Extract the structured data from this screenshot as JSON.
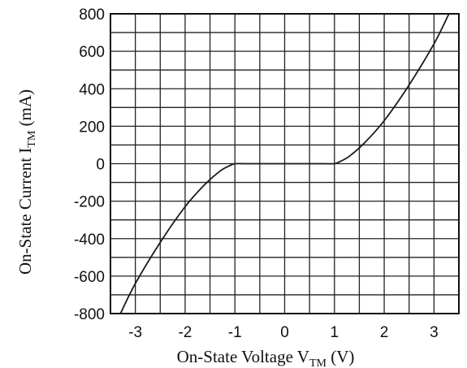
{
  "chart_data": {
    "type": "line",
    "title": "",
    "xlabel": {
      "prefix": "On-State Voltage  V",
      "subscript": "TM",
      "suffix": " (V)"
    },
    "ylabel": {
      "prefix": "On-State Current  I",
      "subscript": "TM",
      "suffix": " (mA)"
    },
    "xlim": [
      -3.5,
      3.5
    ],
    "ylim": [
      -800,
      800
    ],
    "grid": true,
    "x_ticks": [
      -3,
      -2,
      -1,
      0,
      1,
      2,
      3
    ],
    "y_ticks": [
      800,
      600,
      400,
      200,
      0,
      -200,
      -400,
      -600,
      -800
    ],
    "x_tick_labels": [
      "-3",
      "-2",
      "-1",
      "0",
      "1",
      "2",
      "3"
    ],
    "y_tick_labels": [
      "800",
      "600",
      "400",
      "200",
      "0",
      "-200",
      "-400",
      "-600",
      "-800"
    ],
    "series": [
      {
        "color": "#1a1a1a",
        "x": [
          -3.3,
          -3.0,
          -2.5,
          -2.0,
          -1.6,
          -1.3,
          -1.1,
          -1.0,
          -0.8,
          -0.5,
          0.0,
          0.5,
          0.8,
          1.0,
          1.1,
          1.3,
          1.6,
          2.0,
          2.5,
          3.0,
          3.3
        ],
        "y": [
          -800,
          -640,
          -420,
          -230,
          -110,
          -40,
          -10,
          0,
          0,
          0,
          0,
          0,
          0,
          0,
          10,
          40,
          110,
          230,
          420,
          640,
          800
        ]
      }
    ]
  }
}
